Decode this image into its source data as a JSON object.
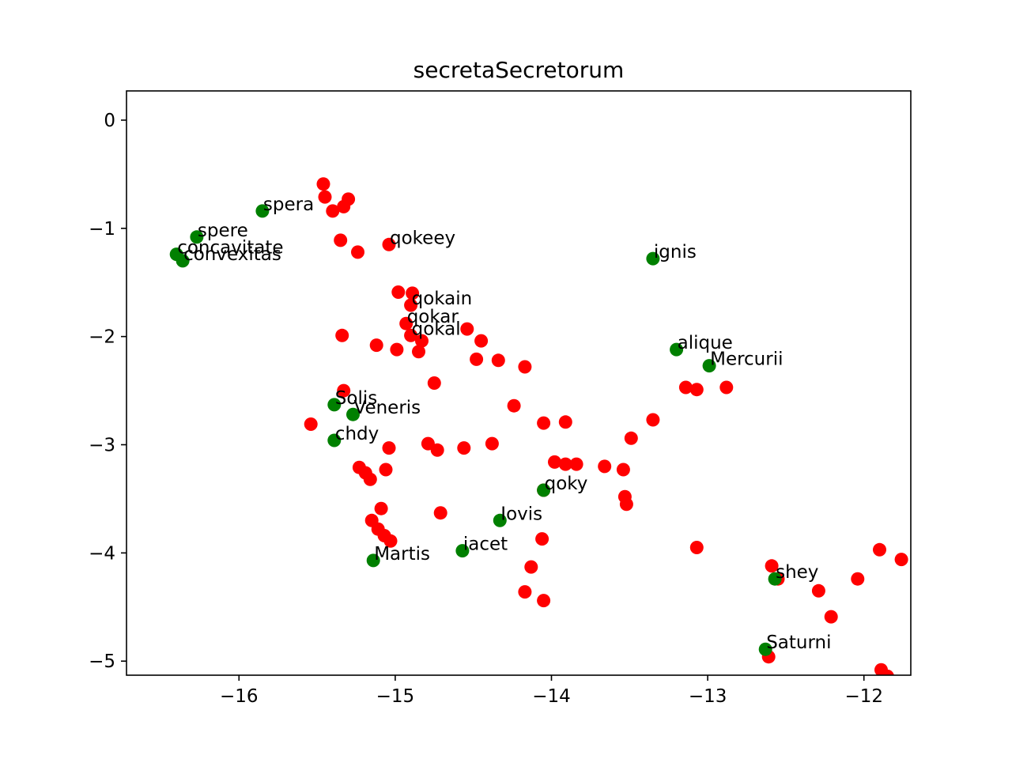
{
  "chart_data": {
    "type": "scatter",
    "title": "secretaSecretorum",
    "xlabel": "",
    "ylabel": "",
    "xlim": [
      -16.72,
      -11.7
    ],
    "ylim": [
      -5.13,
      0.27
    ],
    "xticks": [
      -16,
      -15,
      -14,
      -13,
      -12
    ],
    "yticks": [
      0,
      -1,
      -2,
      -3,
      -4,
      -5
    ],
    "grid": false,
    "colors": {
      "red": "#ff0000",
      "green": "#008000"
    },
    "series": [
      {
        "color": "red",
        "points": [
          [
            -15.46,
            -0.59
          ],
          [
            -15.45,
            -0.71
          ],
          [
            -15.4,
            -0.84
          ],
          [
            -15.33,
            -0.8
          ],
          [
            -15.3,
            -0.73
          ],
          [
            -15.35,
            -1.11
          ],
          [
            -15.24,
            -1.22
          ],
          [
            -15.04,
            -1.15
          ],
          [
            -14.98,
            -1.59
          ],
          [
            -14.89,
            -1.6
          ],
          [
            -14.9,
            -1.71
          ],
          [
            -14.93,
            -1.88
          ],
          [
            -14.54,
            -1.93
          ],
          [
            -14.9,
            -1.99
          ],
          [
            -14.83,
            -2.04
          ],
          [
            -14.45,
            -2.04
          ],
          [
            -14.85,
            -2.14
          ],
          [
            -14.99,
            -2.12
          ],
          [
            -15.12,
            -2.08
          ],
          [
            -15.34,
            -1.99
          ],
          [
            -14.48,
            -2.21
          ],
          [
            -14.34,
            -2.22
          ],
          [
            -14.17,
            -2.28
          ],
          [
            -14.75,
            -2.43
          ],
          [
            -15.33,
            -2.5
          ],
          [
            -14.24,
            -2.64
          ],
          [
            -15.54,
            -2.81
          ],
          [
            -14.05,
            -2.8
          ],
          [
            -13.91,
            -2.79
          ],
          [
            -15.04,
            -3.03
          ],
          [
            -14.79,
            -2.99
          ],
          [
            -14.73,
            -3.05
          ],
          [
            -14.56,
            -3.03
          ],
          [
            -14.38,
            -2.99
          ],
          [
            -15.23,
            -3.21
          ],
          [
            -15.19,
            -3.26
          ],
          [
            -15.16,
            -3.32
          ],
          [
            -15.06,
            -3.23
          ],
          [
            -13.98,
            -3.16
          ],
          [
            -13.91,
            -3.18
          ],
          [
            -13.84,
            -3.18
          ],
          [
            -13.66,
            -3.2
          ],
          [
            -13.54,
            -3.23
          ],
          [
            -13.49,
            -2.94
          ],
          [
            -13.35,
            -2.77
          ],
          [
            -14.05,
            -3.42
          ],
          [
            -13.53,
            -3.48
          ],
          [
            -13.52,
            -3.55
          ],
          [
            -15.09,
            -3.59
          ],
          [
            -15.15,
            -3.7
          ],
          [
            -15.11,
            -3.78
          ],
          [
            -15.07,
            -3.84
          ],
          [
            -15.03,
            -3.89
          ],
          [
            -14.71,
            -3.63
          ],
          [
            -14.06,
            -3.87
          ],
          [
            -14.13,
            -4.13
          ],
          [
            -14.17,
            -4.36
          ],
          [
            -14.05,
            -4.44
          ],
          [
            -13.07,
            -3.95
          ],
          [
            -13.14,
            -2.47
          ],
          [
            -13.07,
            -2.49
          ],
          [
            -12.88,
            -2.47
          ],
          [
            -12.59,
            -4.12
          ],
          [
            -12.55,
            -4.24
          ],
          [
            -12.29,
            -4.35
          ],
          [
            -12.21,
            -4.59
          ],
          [
            -12.04,
            -4.24
          ],
          [
            -11.9,
            -3.97
          ],
          [
            -11.76,
            -4.06
          ],
          [
            -12.61,
            -4.96
          ],
          [
            -11.89,
            -5.08
          ],
          [
            -11.85,
            -5.14
          ]
        ]
      },
      {
        "color": "green",
        "points": [
          [
            -15.85,
            -0.84
          ],
          [
            -16.27,
            -1.08
          ],
          [
            -16.4,
            -1.24
          ],
          [
            -16.36,
            -1.3
          ],
          [
            -13.35,
            -1.28
          ],
          [
            -13.2,
            -2.12
          ],
          [
            -12.99,
            -2.27
          ],
          [
            -15.39,
            -2.63
          ],
          [
            -15.27,
            -2.72
          ],
          [
            -15.39,
            -2.96
          ],
          [
            -14.05,
            -3.42
          ],
          [
            -14.33,
            -3.7
          ],
          [
            -14.57,
            -3.98
          ],
          [
            -15.14,
            -4.07
          ],
          [
            -12.57,
            -4.24
          ],
          [
            -12.63,
            -4.89
          ]
        ]
      }
    ],
    "annotations": [
      {
        "text": "spera",
        "x": -15.85,
        "y": -0.84
      },
      {
        "text": "spere",
        "x": -16.27,
        "y": -1.08
      },
      {
        "text": "concavitate",
        "x": -16.4,
        "y": -1.24
      },
      {
        "text": "convexitas",
        "x": -16.36,
        "y": -1.3
      },
      {
        "text": "qokeey",
        "x": -15.04,
        "y": -1.15
      },
      {
        "text": "ignis",
        "x": -13.35,
        "y": -1.28
      },
      {
        "text": "qokain",
        "x": -14.9,
        "y": -1.71
      },
      {
        "text": "qokar",
        "x": -14.93,
        "y": -1.88
      },
      {
        "text": "qokal",
        "x": -14.9,
        "y": -1.99
      },
      {
        "text": "alique",
        "x": -13.2,
        "y": -2.12
      },
      {
        "text": "Mercurii",
        "x": -12.99,
        "y": -2.27
      },
      {
        "text": "Solis",
        "x": -15.39,
        "y": -2.63
      },
      {
        "text": "Veneris",
        "x": -15.27,
        "y": -2.72
      },
      {
        "text": "chdy",
        "x": -15.39,
        "y": -2.96
      },
      {
        "text": "qoky",
        "x": -14.05,
        "y": -3.42
      },
      {
        "text": "Iovis",
        "x": -14.33,
        "y": -3.7
      },
      {
        "text": "iacet",
        "x": -14.57,
        "y": -3.98
      },
      {
        "text": "Martis",
        "x": -15.14,
        "y": -4.07
      },
      {
        "text": "shey",
        "x": -12.57,
        "y": -4.24
      },
      {
        "text": "Saturni",
        "x": -12.63,
        "y": -4.89
      }
    ]
  }
}
